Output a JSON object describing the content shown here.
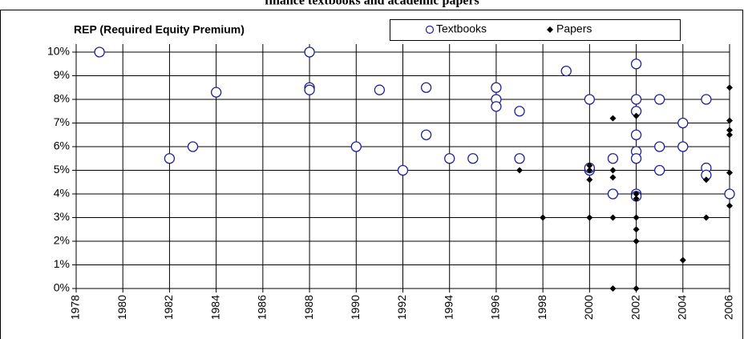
{
  "chart_data": {
    "type": "scatter",
    "title": "finance textbooks and academic papers",
    "ylabel": "REP (Required Equity Premium)",
    "xlim": [
      1978,
      2006
    ],
    "xticks": [
      1978,
      1980,
      1982,
      1984,
      1986,
      1988,
      1990,
      1992,
      1994,
      1996,
      1998,
      2000,
      2002,
      2004,
      2006
    ],
    "ylim": [
      0,
      10
    ],
    "yticks": [
      {
        "value": 0,
        "label": "0%"
      },
      {
        "value": 1,
        "label": "1%"
      },
      {
        "value": 2,
        "label": "2%"
      },
      {
        "value": 3,
        "label": "3%"
      },
      {
        "value": 4,
        "label": "4%"
      },
      {
        "value": 5,
        "label": "5%"
      },
      {
        "value": 6,
        "label": "6%"
      },
      {
        "value": 7,
        "label": "7%"
      },
      {
        "value": 8,
        "label": "8%"
      },
      {
        "value": 9,
        "label": "9%"
      },
      {
        "value": 10,
        "label": "10%"
      }
    ],
    "grid": true,
    "series": [
      {
        "name": "Textbooks",
        "color": "#1f1f99",
        "x": [
          1979,
          1982,
          1983,
          1984,
          1988,
          1988,
          1988,
          1990,
          1991,
          1992,
          1993,
          1993,
          1994,
          1995,
          1996,
          1996,
          1996,
          1997,
          1997,
          1999,
          2000,
          2000,
          2000,
          2001,
          2001,
          2002,
          2002,
          2002,
          2002,
          2002,
          2002,
          2002,
          2002,
          2003,
          2003,
          2003,
          2004,
          2004,
          2005,
          2005,
          2005,
          2006
        ],
        "y": [
          10,
          5.5,
          6,
          8.3,
          10,
          8.5,
          8.4,
          6,
          8.4,
          5,
          8.5,
          6.5,
          5.5,
          5.5,
          8.5,
          8,
          7.7,
          7.5,
          5.5,
          9.2,
          8,
          5,
          5.1,
          5.5,
          4,
          9.5,
          8,
          7.5,
          6.5,
          5.8,
          5.5,
          4,
          3.9,
          8,
          6,
          5,
          7,
          6,
          8,
          5.1,
          4.8,
          4
        ]
      },
      {
        "name": "Papers",
        "color": "#000000",
        "x": [
          1997,
          1998,
          2000,
          2000,
          2000,
          2000,
          2001,
          2001,
          2001,
          2001,
          2001,
          2002,
          2002,
          2002,
          2002,
          2002,
          2002,
          2002,
          2004,
          2005,
          2005,
          2006,
          2006,
          2006,
          2006,
          2006,
          2006
        ],
        "y": [
          5,
          3,
          5.2,
          5,
          4.6,
          3,
          7.2,
          5,
          4.7,
          3,
          0,
          7.3,
          4,
          3.8,
          3,
          2.5,
          2,
          0,
          1.2,
          4.6,
          3,
          8.5,
          7.1,
          6.7,
          6.5,
          4.9,
          3.5
        ]
      }
    ]
  }
}
